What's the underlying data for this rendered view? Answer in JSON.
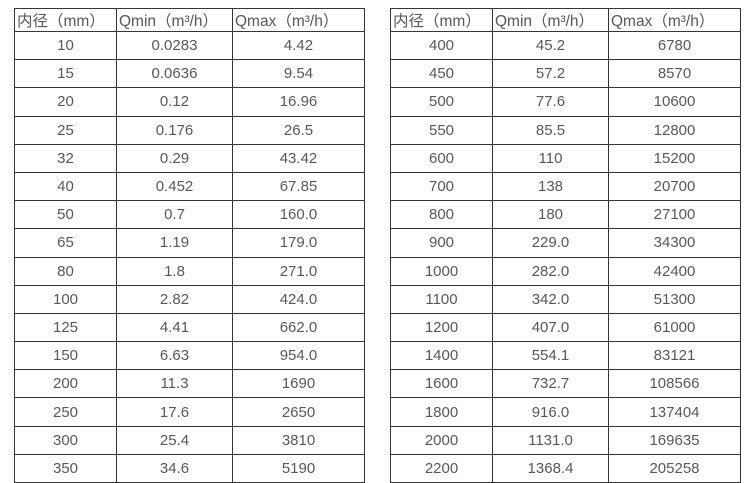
{
  "tables": [
    {
      "name": "small-diameters",
      "headers": [
        "内径（mm）",
        "Qmin（m³/h）",
        "Qmax（m³/h）"
      ],
      "rows": [
        [
          "10",
          "0.0283",
          "4.42"
        ],
        [
          "15",
          "0.0636",
          "9.54"
        ],
        [
          "20",
          "0.12",
          "16.96"
        ],
        [
          "25",
          "0.176",
          "26.5"
        ],
        [
          "32",
          "0.29",
          "43.42"
        ],
        [
          "40",
          "0.452",
          "67.85"
        ],
        [
          "50",
          "0.7",
          "160.0"
        ],
        [
          "65",
          "1.19",
          "179.0"
        ],
        [
          "80",
          "1.8",
          "271.0"
        ],
        [
          "100",
          "2.82",
          "424.0"
        ],
        [
          "125",
          "4.41",
          "662.0"
        ],
        [
          "150",
          "6.63",
          "954.0"
        ],
        [
          "200",
          "11.3",
          "1690"
        ],
        [
          "250",
          "17.6",
          "2650"
        ],
        [
          "300",
          "25.4",
          "3810"
        ],
        [
          "350",
          "34.6",
          "5190"
        ]
      ]
    },
    {
      "name": "large-diameters",
      "headers": [
        "内径（mm）",
        "Qmin（m³/h）",
        "Qmax（m³/h）"
      ],
      "rows": [
        [
          "400",
          "45.2",
          "6780"
        ],
        [
          "450",
          "57.2",
          "8570"
        ],
        [
          "500",
          "77.6",
          "10600"
        ],
        [
          "550",
          "85.5",
          "12800"
        ],
        [
          "600",
          "110",
          "15200"
        ],
        [
          "700",
          "138",
          "20700"
        ],
        [
          "800",
          "180",
          "27100"
        ],
        [
          "900",
          "229.0",
          "34300"
        ],
        [
          "1000",
          "282.0",
          "42400"
        ],
        [
          "1100",
          "342.0",
          "51300"
        ],
        [
          "1200",
          "407.0",
          "61000"
        ],
        [
          "1400",
          "554.1",
          "83121"
        ],
        [
          "1600",
          "732.7",
          "108566"
        ],
        [
          "1800",
          "916.0",
          "137404"
        ],
        [
          "2000",
          "1131.0",
          "169635"
        ],
        [
          "2200",
          "1368.4",
          "205258"
        ]
      ]
    }
  ]
}
